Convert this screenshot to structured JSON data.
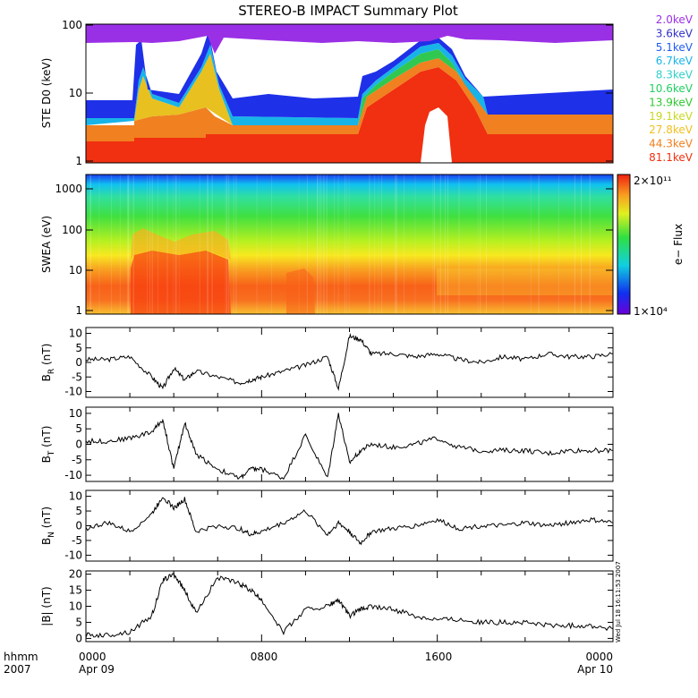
{
  "chart_data": {
    "type": "line",
    "title": "STEREO-B IMPACT Summary Plot",
    "x_ticks": [
      "0000",
      "0800",
      "1600",
      "0000"
    ],
    "x_date_labels": [
      "Apr 09",
      "Apr 10"
    ],
    "x_header": [
      "hhmm",
      "2007"
    ],
    "side_stamp": "Wed Jul 18 16:11:53 2007",
    "ste": {
      "ylabel": "STE D0 (keV)",
      "scale": "log",
      "yticks": [
        "1",
        "10",
        "100"
      ],
      "ylim": [
        1,
        100
      ],
      "channels": [
        {
          "label": "2.0keV",
          "color": "#9a30e6"
        },
        {
          "label": "3.6keV",
          "color": "#3030c8"
        },
        {
          "label": "5.1keV",
          "color": "#1e5cf0"
        },
        {
          "label": "6.7keV",
          "color": "#18b4e8"
        },
        {
          "label": "8.3keV",
          "color": "#30d0c8"
        },
        {
          "label": "10.6keV",
          "color": "#20d060"
        },
        {
          "label": "13.9keV",
          "color": "#30c830"
        },
        {
          "label": "19.1keV",
          "color": "#c8d820"
        },
        {
          "label": "27.8keV",
          "color": "#f0c020"
        },
        {
          "label": "44.3keV",
          "color": "#f08020"
        },
        {
          "label": "81.1keV",
          "color": "#f03010"
        }
      ]
    },
    "swea": {
      "ylabel": "SWEA (eV)",
      "scale": "log",
      "yticks": [
        "1",
        "10",
        "100",
        "1000"
      ],
      "ylim": [
        1,
        2000
      ],
      "colorbar_label": "e− Flux",
      "colorbar_max": "2×10¹¹",
      "colorbar_min": "1×10⁴"
    },
    "series": [
      {
        "name": "BR",
        "ylabel": "B_R (nT)",
        "sub": "R",
        "ylim": [
          -12,
          12
        ],
        "yticks": [
          "-10",
          "-5",
          "0",
          "5",
          "10"
        ],
        "x": [
          0,
          1,
          2,
          3,
          3.5,
          4,
          4.5,
          5,
          6,
          7,
          7.5,
          8,
          9,
          10,
          11,
          11.5,
          12,
          12.5,
          13,
          14,
          15,
          16,
          17,
          18,
          19,
          20,
          21,
          22,
          23,
          24
        ],
        "values": [
          1,
          1,
          2,
          -5,
          -9,
          -2,
          -6,
          -3,
          -5,
          -7,
          -6,
          -5,
          -3,
          -1,
          2,
          -9,
          9,
          8,
          3,
          3,
          2,
          3,
          1,
          0,
          2,
          1,
          3,
          2,
          2,
          3
        ]
      },
      {
        "name": "BT",
        "ylabel": "B_T (nT)",
        "sub": "T",
        "ylim": [
          -12,
          12
        ],
        "yticks": [
          "-10",
          "-5",
          "0",
          "5",
          "10"
        ],
        "x": [
          0,
          1,
          2,
          3,
          3.5,
          4,
          4.5,
          5,
          6,
          7,
          7.5,
          8,
          9,
          10,
          11,
          11.5,
          12,
          12.5,
          13,
          14,
          15,
          16,
          17,
          18,
          19,
          20,
          21,
          22,
          23,
          24
        ],
        "values": [
          1,
          1,
          2,
          4,
          8,
          -8,
          7,
          -3,
          -8,
          -11,
          -8,
          -8,
          -11,
          3,
          -11,
          10,
          -6,
          -2,
          0,
          -1,
          0,
          2,
          -1,
          -2,
          -2,
          -2,
          -3,
          -2,
          -2,
          -2
        ]
      },
      {
        "name": "BN",
        "ylabel": "B_N (nT)",
        "sub": "N",
        "ylim": [
          -12,
          12
        ],
        "yticks": [
          "-10",
          "-5",
          "0",
          "5",
          "10"
        ],
        "x": [
          0,
          1,
          2,
          3,
          3.5,
          4,
          4.5,
          5,
          6,
          7,
          7.5,
          8,
          9,
          10,
          11,
          11.5,
          12,
          12.5,
          13,
          14,
          15,
          16,
          17,
          18,
          19,
          20,
          21,
          22,
          23,
          24
        ],
        "values": [
          -1,
          1,
          -2,
          4,
          10,
          6,
          9,
          -2,
          0,
          -1,
          -3,
          -2,
          1,
          5,
          -3,
          1,
          -2,
          -6,
          -2,
          -1,
          0,
          2,
          -1,
          0,
          0,
          1,
          0,
          1,
          2,
          1
        ]
      },
      {
        "name": "|B|",
        "ylabel": "|B| (nT)",
        "sub": "",
        "ylim": [
          -1,
          21
        ],
        "yticks": [
          "0",
          "5",
          "10",
          "15",
          "20"
        ],
        "x": [
          0,
          1,
          2,
          3,
          3.5,
          4,
          4.5,
          5,
          6,
          7,
          7.5,
          8,
          9,
          10,
          11,
          11.5,
          12,
          12.5,
          13,
          14,
          15,
          16,
          17,
          18,
          19,
          20,
          21,
          22,
          23,
          24
        ],
        "values": [
          1,
          1,
          2,
          7,
          18,
          20,
          15,
          8,
          19,
          17,
          15,
          12,
          2,
          9,
          10,
          12,
          7,
          9,
          10,
          9,
          7,
          6,
          6,
          5,
          5,
          5,
          4,
          4,
          4,
          3
        ]
      }
    ]
  }
}
